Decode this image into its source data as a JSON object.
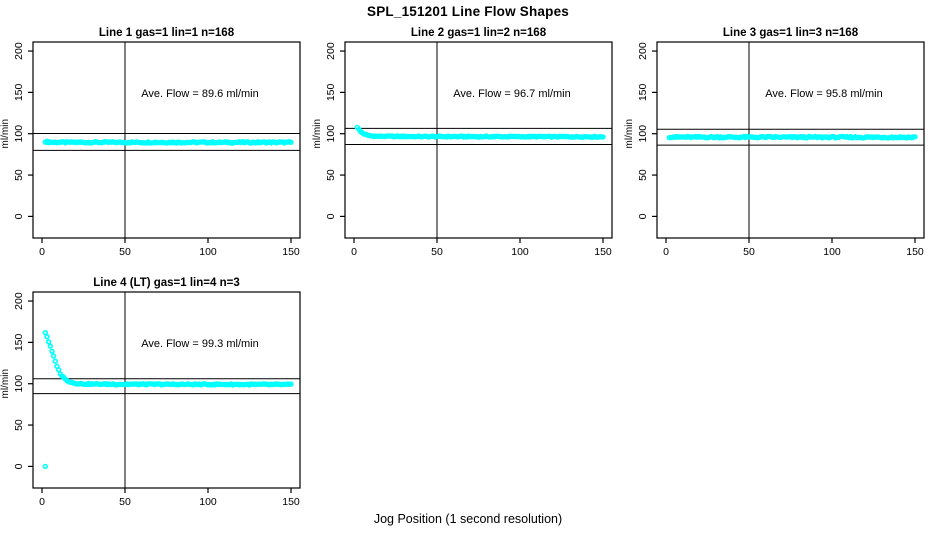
{
  "page": {
    "title": "SPL_151201  Line Flow Shapes",
    "xlabel": "Jog Position (1 second resolution)",
    "background": "#ffffff",
    "point_color": "#00ffff",
    "line_color": "#000000"
  },
  "chart_data": [
    {
      "type": "scatter",
      "title": "Line 1 gas=1 lin=1 n=168",
      "annotation": "Ave. Flow =  89.6  ml/min",
      "ave_flow_ml_min": 89.6,
      "n": 168,
      "ylabel": "ml/min",
      "xticks": [
        0,
        50,
        100,
        150
      ],
      "yticks": [
        0,
        50,
        100,
        150,
        200
      ],
      "xlim": [
        0,
        155
      ],
      "ylim": [
        -10,
        210
      ],
      "vline_x": 50,
      "hlines": [
        100.2,
        79.8
      ],
      "x_start": 2,
      "x_end": 150,
      "x_step": 1,
      "wiggle": 0.8,
      "series_anchors": [
        [
          2,
          90.5
        ],
        [
          4,
          89.8
        ],
        [
          10,
          89.6
        ],
        [
          150,
          89.5
        ]
      ],
      "extra_points": []
    },
    {
      "type": "scatter",
      "title": "Line 2 gas=1 lin=2 n=168",
      "annotation": "Ave. Flow =  96.7  ml/min",
      "ave_flow_ml_min": 96.7,
      "n": 168,
      "ylabel": "ml/min",
      "xticks": [
        0,
        50,
        100,
        150
      ],
      "yticks": [
        0,
        50,
        100,
        150,
        200
      ],
      "xlim": [
        0,
        155
      ],
      "ylim": [
        -10,
        210
      ],
      "vline_x": 50,
      "hlines": [
        106.4,
        87.0
      ],
      "x_start": 2,
      "x_end": 150,
      "x_step": 1,
      "wiggle": 0.6,
      "series_anchors": [
        [
          2,
          108
        ],
        [
          3,
          105
        ],
        [
          4,
          102.5
        ],
        [
          6,
          99.8
        ],
        [
          8,
          98.2
        ],
        [
          10,
          97.4
        ],
        [
          14,
          96.9
        ],
        [
          40,
          96.6
        ],
        [
          150,
          96.3
        ]
      ],
      "extra_points": []
    },
    {
      "type": "scatter",
      "title": "Line 3 gas=1 lin=3 n=168",
      "annotation": "Ave. Flow =  95.8  ml/min",
      "ave_flow_ml_min": 95.8,
      "n": 168,
      "ylabel": "ml/min",
      "xticks": [
        0,
        50,
        100,
        150
      ],
      "yticks": [
        0,
        50,
        100,
        150,
        200
      ],
      "xlim": [
        0,
        155
      ],
      "ylim": [
        -10,
        210
      ],
      "vline_x": 50,
      "hlines": [
        105.4,
        86.2
      ],
      "x_start": 2,
      "x_end": 150,
      "x_step": 1,
      "wiggle": 0.9,
      "series_anchors": [
        [
          2,
          96.2
        ],
        [
          6,
          95.9
        ],
        [
          80,
          95.8
        ],
        [
          150,
          95.7
        ]
      ],
      "extra_points": []
    },
    {
      "type": "scatter",
      "title": "Line 4 (LT) gas=1 lin=4 n=3",
      "annotation": "Ave. Flow =  99.3  ml/min",
      "ave_flow_ml_min": 99.3,
      "n": 3,
      "ylabel": "ml/min",
      "xticks": [
        0,
        50,
        100,
        150
      ],
      "yticks": [
        0,
        50,
        100,
        150,
        200
      ],
      "xlim": [
        0,
        155
      ],
      "ylim": [
        -10,
        210
      ],
      "vline_x": 50,
      "hlines": [
        106.0,
        88.0
      ],
      "x_start": 2,
      "x_end": 150,
      "x_step": 1,
      "wiggle": 0.7,
      "series_anchors": [
        [
          2,
          162
        ],
        [
          3,
          157
        ],
        [
          4,
          151
        ],
        [
          5,
          145
        ],
        [
          6,
          139
        ],
        [
          7,
          133
        ],
        [
          8,
          127
        ],
        [
          9,
          121.5
        ],
        [
          10,
          116.5
        ],
        [
          11,
          112.5
        ],
        [
          12,
          109.5
        ],
        [
          13,
          107.5
        ],
        [
          14,
          105.5
        ],
        [
          16,
          103
        ],
        [
          18,
          101.5
        ],
        [
          20,
          100.5
        ],
        [
          24,
          99.8
        ],
        [
          40,
          99.4
        ],
        [
          90,
          99.2
        ],
        [
          150,
          99.0
        ]
      ],
      "extra_points": [
        [
          2,
          0
        ]
      ]
    }
  ]
}
